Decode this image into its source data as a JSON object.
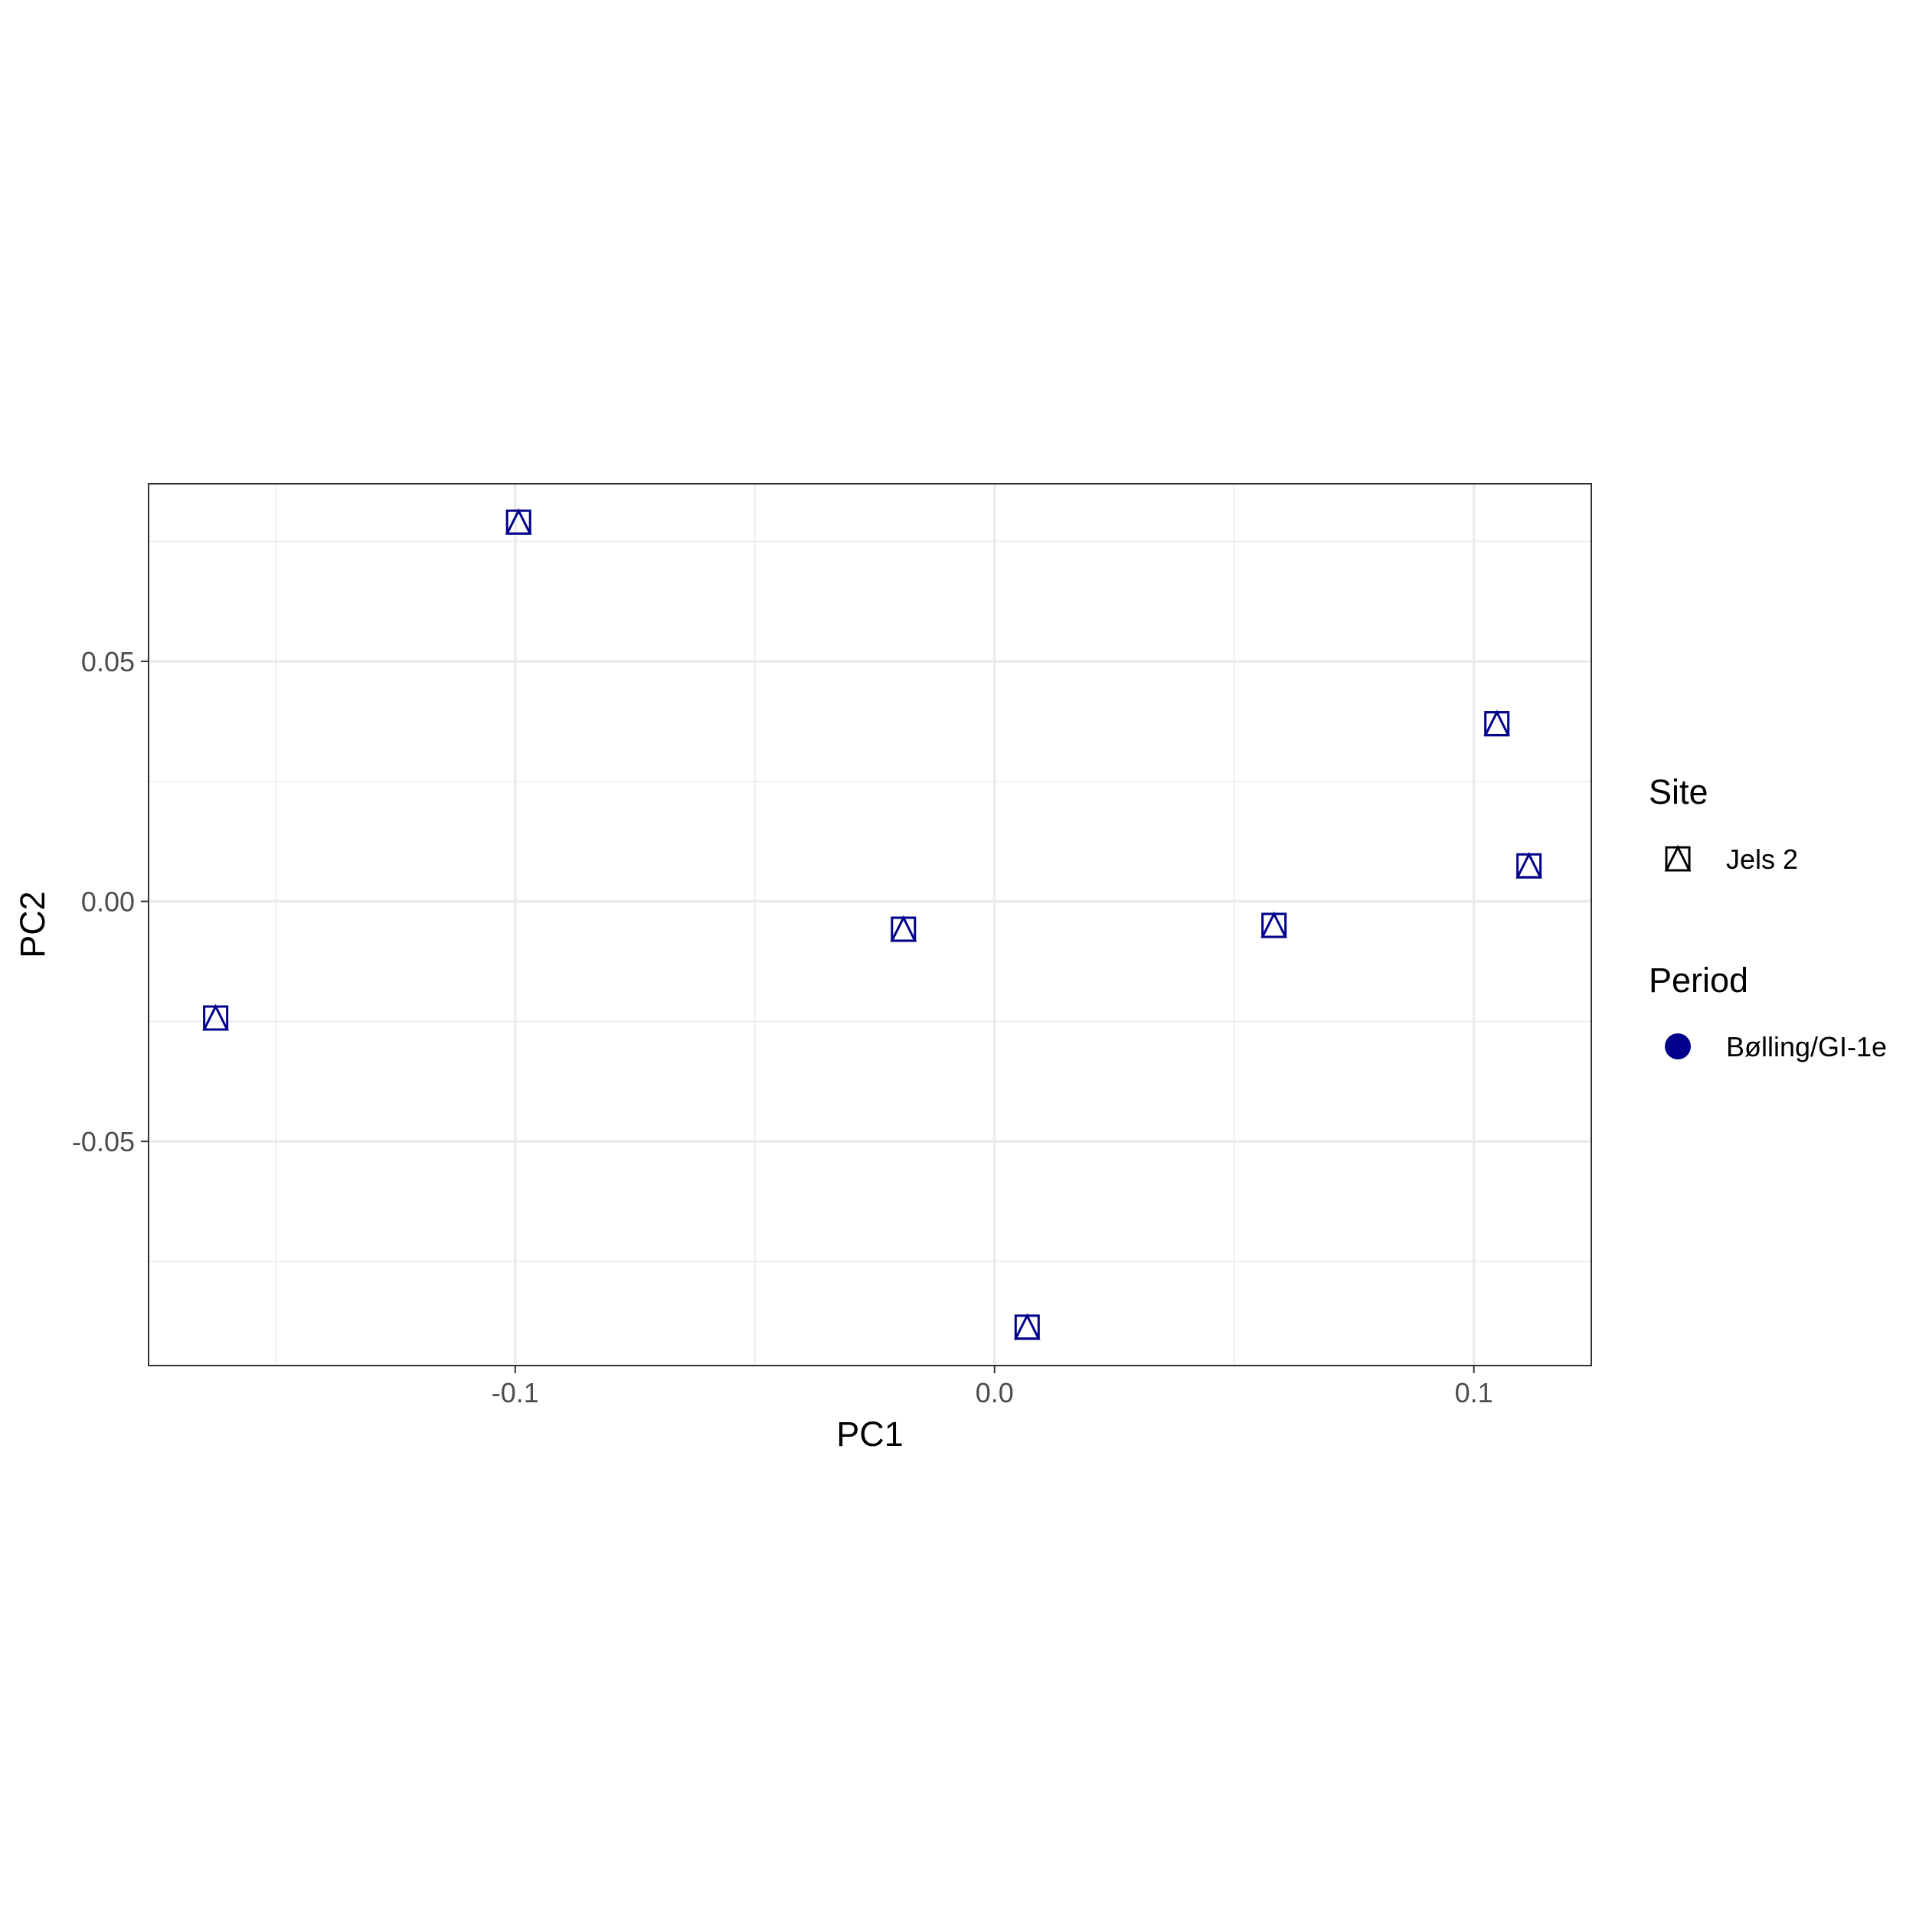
{
  "chart_data": {
    "type": "scatter",
    "title": "",
    "xlabel": "PC1",
    "ylabel": "PC2",
    "xlim": [
      -0.1765,
      0.1245
    ],
    "ylim": [
      -0.0967,
      0.087
    ],
    "x_ticks": [
      {
        "value": -0.1,
        "label": "-0.1"
      },
      {
        "value": 0.0,
        "label": "0.0"
      },
      {
        "value": 0.1,
        "label": "0.1"
      }
    ],
    "y_ticks": [
      {
        "value": 0.05,
        "label": "0.05"
      },
      {
        "value": 0.0,
        "label": "0.00"
      },
      {
        "value": -0.05,
        "label": "-0.05"
      }
    ],
    "x_minor_grid": [
      -0.15,
      -0.05,
      0.05
    ],
    "y_minor_grid": [
      0.075,
      0.025,
      -0.025,
      -0.075
    ],
    "grid": true,
    "marker": "square-with-triangle",
    "marker_color": "#00008B",
    "points": [
      {
        "x": -0.1625,
        "y": -0.0243
      },
      {
        "x": -0.0993,
        "y": 0.079
      },
      {
        "x": -0.019,
        "y": -0.0058
      },
      {
        "x": 0.0068,
        "y": -0.0887
      },
      {
        "x": 0.0583,
        "y": -0.005
      },
      {
        "x": 0.1048,
        "y": 0.037
      },
      {
        "x": 0.1115,
        "y": 0.0074
      }
    ],
    "legend": {
      "position": "right",
      "groups": [
        {
          "title": "Site",
          "items": [
            {
              "label": "Jels 2",
              "symbol": "square-with-triangle",
              "color": "#000000"
            }
          ]
        },
        {
          "title": "Period",
          "items": [
            {
              "label": "Bølling/GI-1e",
              "symbol": "circle",
              "color": "#00008B"
            }
          ]
        }
      ]
    }
  }
}
